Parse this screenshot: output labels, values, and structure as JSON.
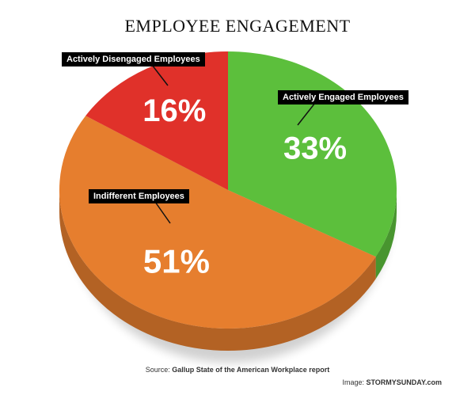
{
  "title": "EMPLOYEE ENGAGEMENT",
  "chart_data": {
    "type": "pie",
    "title": "EMPLOYEE ENGAGEMENT",
    "slices": [
      {
        "label": "Actively Engaged Employees",
        "value": 33,
        "display": "33%",
        "color": "#5cbf3c"
      },
      {
        "label": "Indifferent Employees",
        "value": 51,
        "display": "51%",
        "color": "#e67e2e"
      },
      {
        "label": "Actively Disengaged Employees",
        "value": 16,
        "display": "16%",
        "color": "#e0312a"
      }
    ]
  },
  "footer": {
    "source_prefix": "Source: ",
    "source_text": "Gallup State of the American Workplace report",
    "credit_prefix": "Image: ",
    "credit_text": "STORMYSUNDAY.com"
  }
}
